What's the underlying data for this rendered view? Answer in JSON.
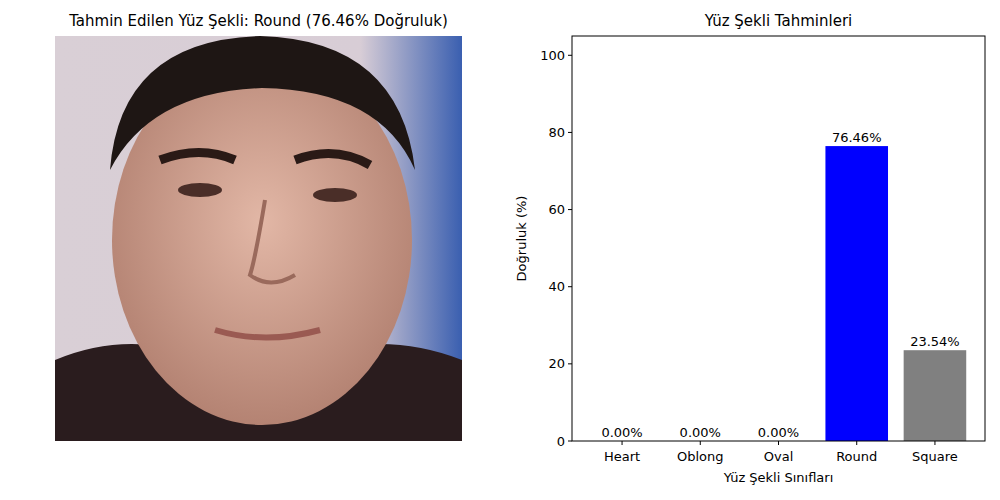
{
  "image_panel": {
    "title": "Tahmin Edilen Yüz Şekli: Round (76.46% Doğruluk)"
  },
  "chart_data": {
    "type": "bar",
    "title": "Yüz Şekli Tahminleri",
    "x_label": "Yüz Şekli Sınıfları",
    "y_label": "Doğruluk (%)",
    "categories": [
      "Heart",
      "Oblong",
      "Oval",
      "Round",
      "Square"
    ],
    "values": [
      0,
      0,
      0,
      76.46,
      23.54
    ],
    "value_labels": [
      "0.00%",
      "0.00%",
      "0.00%",
      "76.46%",
      "23.54%"
    ],
    "colors": [
      "gray",
      "gray",
      "gray",
      "blue",
      "gray"
    ],
    "data_labels": true,
    "ylim": [
      0,
      105
    ],
    "yticks": [
      0,
      20,
      40,
      60,
      80,
      100
    ],
    "grid": false
  }
}
